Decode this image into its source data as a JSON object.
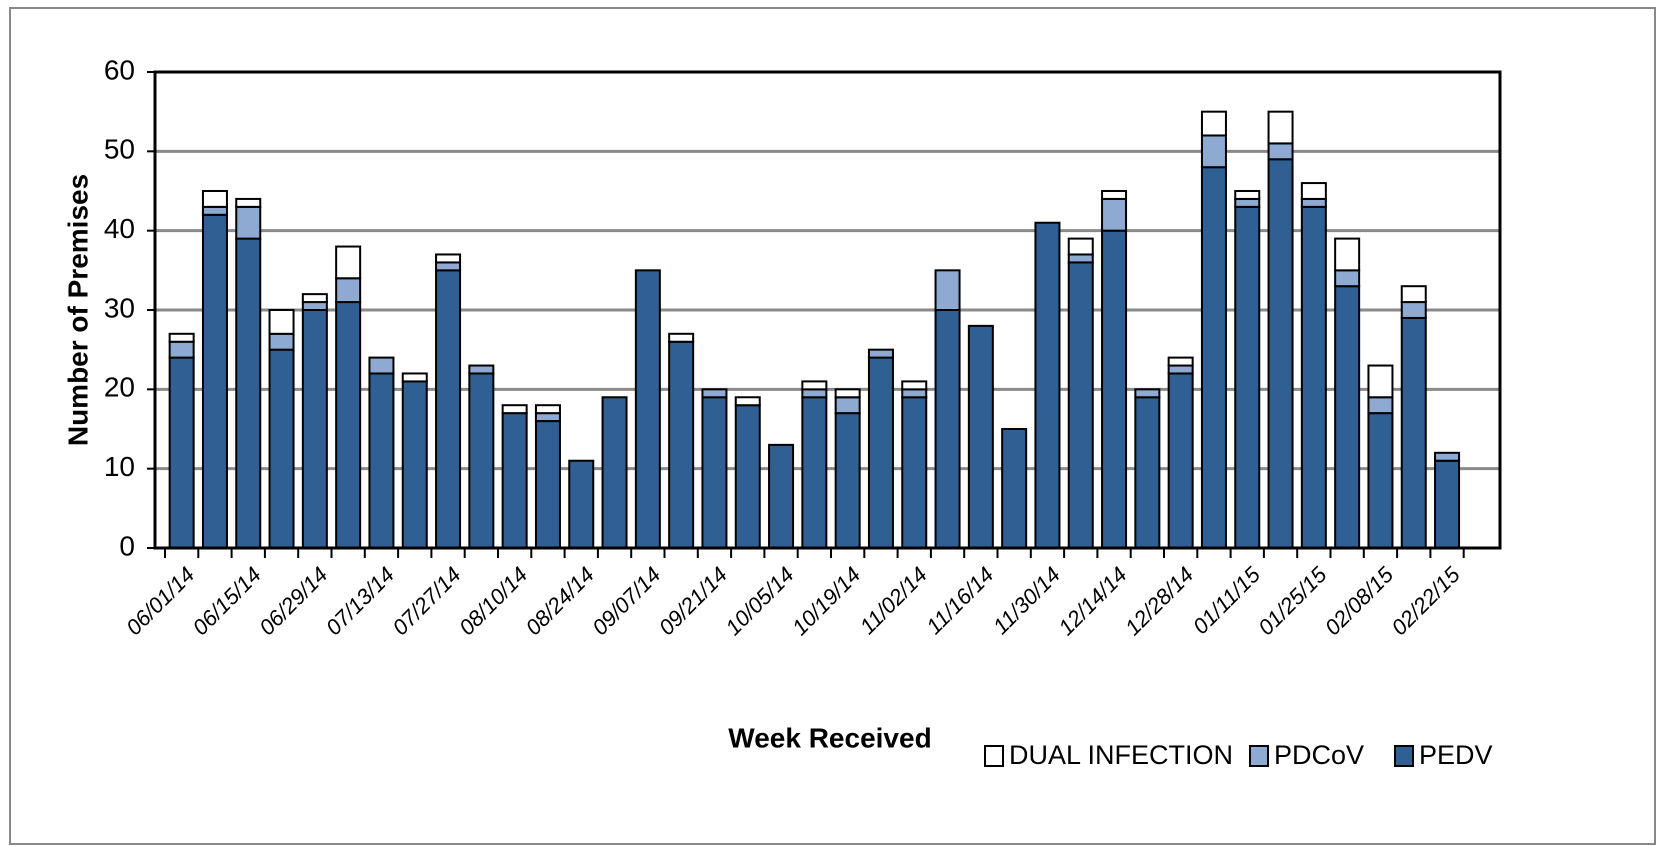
{
  "chart_data": {
    "type": "stacked_bar",
    "xlabel": "Week Received",
    "ylabel": "Number of Premises",
    "categories": [
      "06/01/14",
      null,
      "06/15/14",
      null,
      "06/29/14",
      null,
      "07/13/14",
      null,
      "07/27/14",
      null,
      "08/10/14",
      null,
      "08/24/14",
      null,
      "09/07/14",
      null,
      "09/21/14",
      null,
      "10/05/14",
      null,
      "10/19/14",
      null,
      "11/02/14",
      null,
      "11/16/14",
      null,
      "11/30/14",
      null,
      "12/14/14",
      null,
      "12/28/14",
      null,
      "01/11/15",
      null,
      "01/25/15",
      null,
      "02/08/15",
      null,
      "02/22/15"
    ],
    "series": [
      {
        "name": "PEDV",
        "color": "#2f5f93",
        "values": [
          24,
          42,
          39,
          25,
          30,
          31,
          22,
          21,
          35,
          22,
          17,
          16,
          11,
          19,
          35,
          26,
          19,
          18,
          13,
          19,
          17,
          24,
          19,
          30,
          28,
          15,
          41,
          36,
          40,
          19,
          22,
          48,
          43,
          49,
          43,
          33,
          17,
          29,
          11
        ]
      },
      {
        "name": "PDCoV",
        "color": "#8eaad2",
        "values": [
          2,
          1,
          4,
          2,
          1,
          3,
          2,
          0,
          1,
          1,
          0,
          1,
          0,
          0,
          0,
          0,
          1,
          0,
          0,
          1,
          2,
          1,
          1,
          5,
          0,
          0,
          0,
          1,
          4,
          1,
          1,
          4,
          1,
          2,
          1,
          2,
          2,
          2,
          1
        ]
      },
      {
        "name": "DUAL INFECTION",
        "color": "#ffffff",
        "values": [
          1,
          2,
          1,
          3,
          1,
          4,
          0,
          1,
          1,
          0,
          1,
          1,
          0,
          0,
          0,
          1,
          0,
          1,
          0,
          1,
          1,
          0,
          1,
          0,
          0,
          0,
          0,
          2,
          1,
          0,
          1,
          3,
          1,
          4,
          2,
          4,
          4,
          2,
          0
        ]
      }
    ],
    "ylim": [
      0,
      60
    ],
    "yticks": [
      0,
      10,
      20,
      30,
      40,
      50,
      60
    ],
    "grid": true
  }
}
